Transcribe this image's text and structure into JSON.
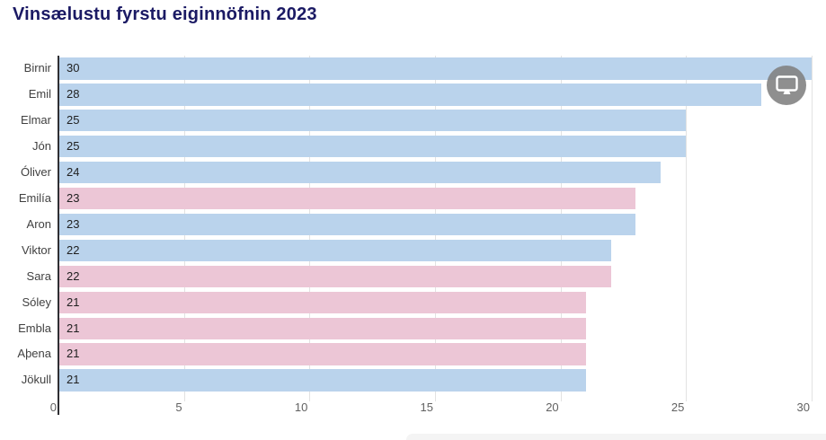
{
  "title": "Vinsælustu fyrstu eiginnöfnin 2023",
  "chart_data": {
    "type": "bar",
    "orientation": "horizontal",
    "title": "Vinsælustu fyrstu eiginnöfnin 2023",
    "categories": [
      "Birnir",
      "Emil",
      "Elmar",
      "Jón",
      "Óliver",
      "Emilía",
      "Aron",
      "Viktor",
      "Sara",
      "Sóley",
      "Embla",
      "Aþena",
      "Jökull"
    ],
    "values": [
      30,
      28,
      25,
      25,
      24,
      23,
      23,
      22,
      22,
      21,
      21,
      21,
      21
    ],
    "groups": [
      "male",
      "male",
      "male",
      "male",
      "male",
      "female",
      "male",
      "male",
      "female",
      "female",
      "female",
      "female",
      "male"
    ],
    "group_colors": {
      "male": "#bad3ec",
      "female": "#ecc6d6"
    },
    "x_ticks": [
      0,
      5,
      10,
      15,
      20,
      25,
      30
    ],
    "xlim": [
      0,
      30
    ],
    "grid": true,
    "legend": "none",
    "value_labels": "inside-start",
    "xlabel": "",
    "ylabel": ""
  },
  "colors": {
    "title": "#1b1a64",
    "axis": "#2f2f33",
    "gridline": "#e2e2e2",
    "category_label": "#414141",
    "value_label": "#1f1f1f",
    "tick_label": "#616161",
    "icon_circle": "#808080",
    "icon_glyph": "#ffffff",
    "bottom_panel": "#f4f4f4"
  },
  "widgets": {
    "monitor_button_icon": "monitor-icon"
  }
}
